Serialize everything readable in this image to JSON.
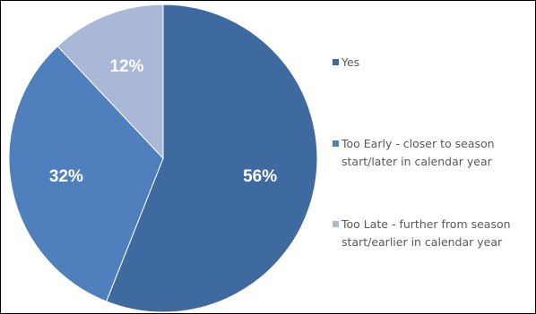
{
  "chart_data": {
    "type": "pie",
    "title": "",
    "slices": [
      {
        "label": "Yes",
        "label_lines": [
          "Yes"
        ],
        "value": 56,
        "value_label": "56%",
        "color": "#3F6A9F"
      },
      {
        "label": "Too Early - closer to season start/later in calendar year",
        "label_lines": [
          "Too Early - closer to season",
          "start/later in calendar year"
        ],
        "value": 32,
        "value_label": "32%",
        "color": "#4F80BD"
      },
      {
        "label": "Too Late - further from season start/earlier in calendar year",
        "label_lines": [
          "Too Late - further from season",
          "start/earlier in calendar year"
        ],
        "value": 12,
        "value_label": "12%",
        "color": "#A9B8D7"
      }
    ],
    "start_angle_deg": 0,
    "direction": "clockwise",
    "legend_position": "right"
  }
}
